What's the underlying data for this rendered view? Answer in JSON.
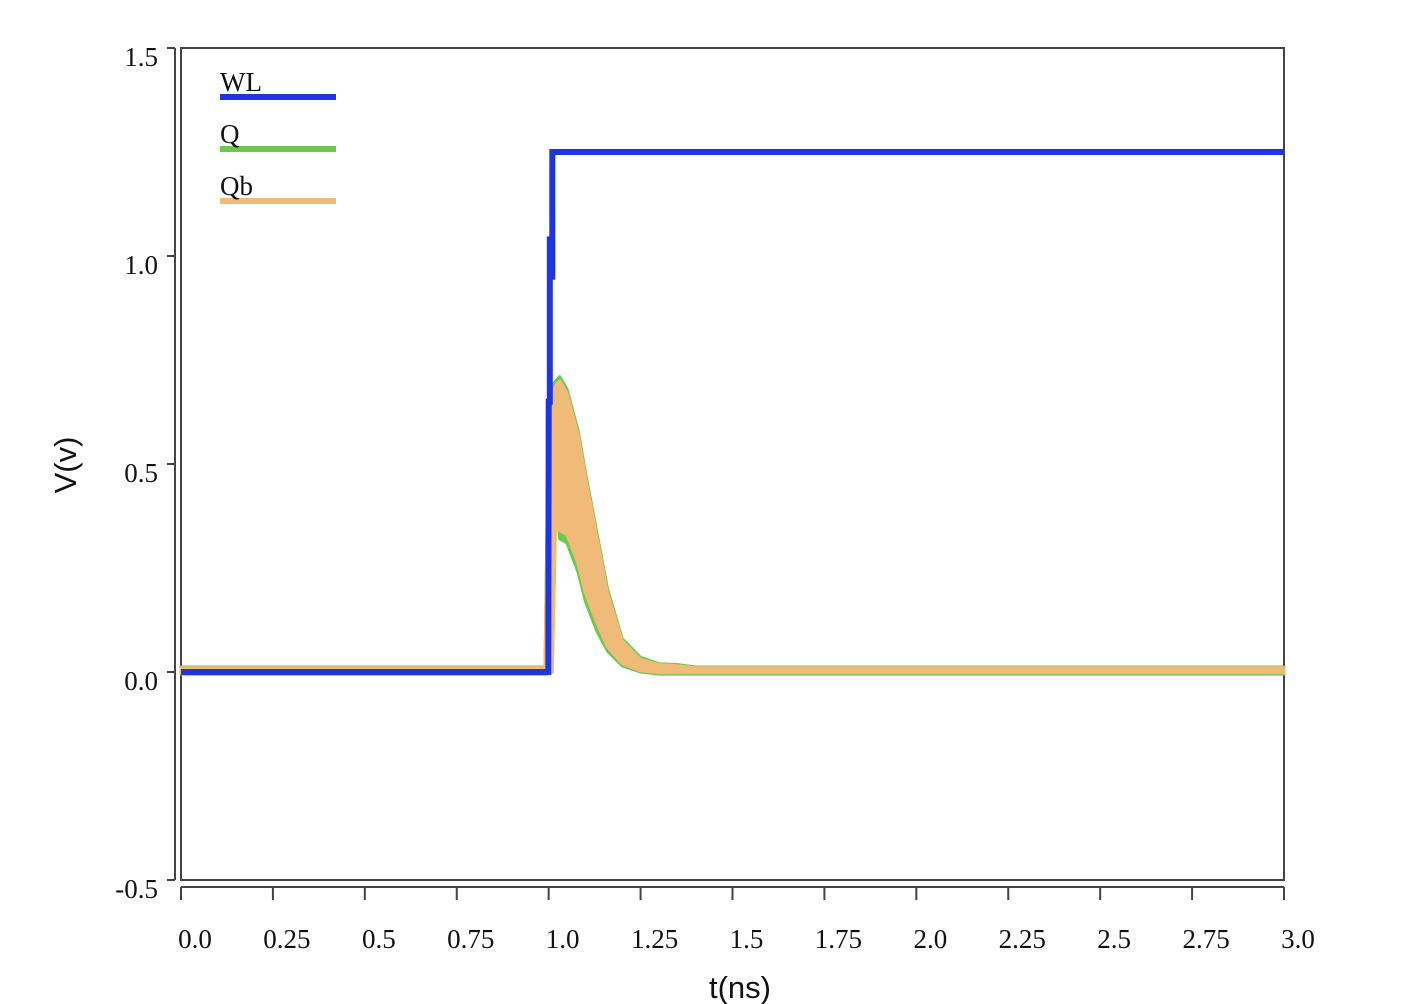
{
  "chart_data": {
    "type": "line",
    "title": "",
    "xlabel": "t(ns)",
    "ylabel": "V(v)",
    "xlim": [
      0.0,
      3.0
    ],
    "ylim": [
      -0.5,
      1.5
    ],
    "xticks": [
      {
        "value": 0.0,
        "label": "0.0"
      },
      {
        "value": 0.25,
        "label": "0.25"
      },
      {
        "value": 0.5,
        "label": "0.5"
      },
      {
        "value": 0.75,
        "label": "0.75"
      },
      {
        "value": 1.0,
        "label": "1.0"
      },
      {
        "value": 1.25,
        "label": "1.25"
      },
      {
        "value": 1.5,
        "label": "1.5"
      },
      {
        "value": 1.75,
        "label": "1.75"
      },
      {
        "value": 2.0,
        "label": "2.0"
      },
      {
        "value": 2.25,
        "label": "2.25"
      },
      {
        "value": 2.5,
        "label": "2.5"
      },
      {
        "value": 2.75,
        "label": "2.75"
      },
      {
        "value": 3.0,
        "label": "3.0"
      }
    ],
    "yticks": [
      {
        "value": -0.5,
        "label": "-0.5"
      },
      {
        "value": 0.0,
        "label": "0.0"
      },
      {
        "value": 0.5,
        "label": "0.5"
      },
      {
        "value": 1.0,
        "label": "1.0"
      },
      {
        "value": 1.5,
        "label": "1.5"
      }
    ],
    "grid": false,
    "legend_position": "top-left",
    "series": [
      {
        "name": "WL",
        "color": "#1f35e0",
        "style": "line",
        "x": [
          0.0,
          0.999,
          1.0,
          1.003,
          1.003,
          1.006,
          1.006,
          1.01,
          1.01,
          1.015,
          1.015,
          3.0
        ],
        "y": [
          0.0,
          0.0,
          0.65,
          0.65,
          1.04,
          1.04,
          0.95,
          0.95,
          1.25,
          1.25,
          1.25,
          1.25
        ]
      },
      {
        "name": "Q",
        "color": "#6cc94e",
        "style": "band",
        "x": [
          0.0,
          0.99,
          0.995,
          1.0,
          1.01,
          1.02,
          1.03,
          1.05,
          1.08,
          1.1,
          1.13,
          1.16,
          1.2,
          1.25,
          1.3,
          1.35,
          1.4,
          3.0
        ],
        "upper": [
          0.012,
          0.012,
          0.33,
          0.65,
          0.69,
          0.7,
          0.71,
          0.68,
          0.58,
          0.48,
          0.34,
          0.2,
          0.08,
          0.035,
          0.02,
          0.018,
          0.012,
          0.012
        ],
        "lower": [
          -0.005,
          -0.005,
          -0.005,
          0.0,
          0.0,
          0.43,
          0.32,
          0.31,
          0.24,
          0.17,
          0.1,
          0.05,
          0.015,
          0.0,
          -0.005,
          -0.005,
          -0.005,
          -0.005
        ]
      },
      {
        "name": "Qb",
        "color": "#f0bb78",
        "style": "band",
        "x": [
          0.0,
          0.99,
          0.995,
          1.0,
          1.01,
          1.02,
          1.03,
          1.05,
          1.08,
          1.1,
          1.13,
          1.16,
          1.2,
          1.25,
          1.3,
          1.35,
          1.4,
          3.0
        ],
        "upper": [
          0.01,
          0.01,
          0.3,
          0.62,
          0.67,
          0.69,
          0.7,
          0.67,
          0.57,
          0.47,
          0.33,
          0.19,
          0.075,
          0.03,
          0.018,
          0.015,
          0.01,
          0.01
        ],
        "lower": [
          -0.002,
          -0.002,
          -0.002,
          0.002,
          0.002,
          0.4,
          0.34,
          0.33,
          0.26,
          0.19,
          0.12,
          0.06,
          0.02,
          0.003,
          -0.002,
          -0.002,
          -0.002,
          -0.002
        ]
      }
    ]
  }
}
